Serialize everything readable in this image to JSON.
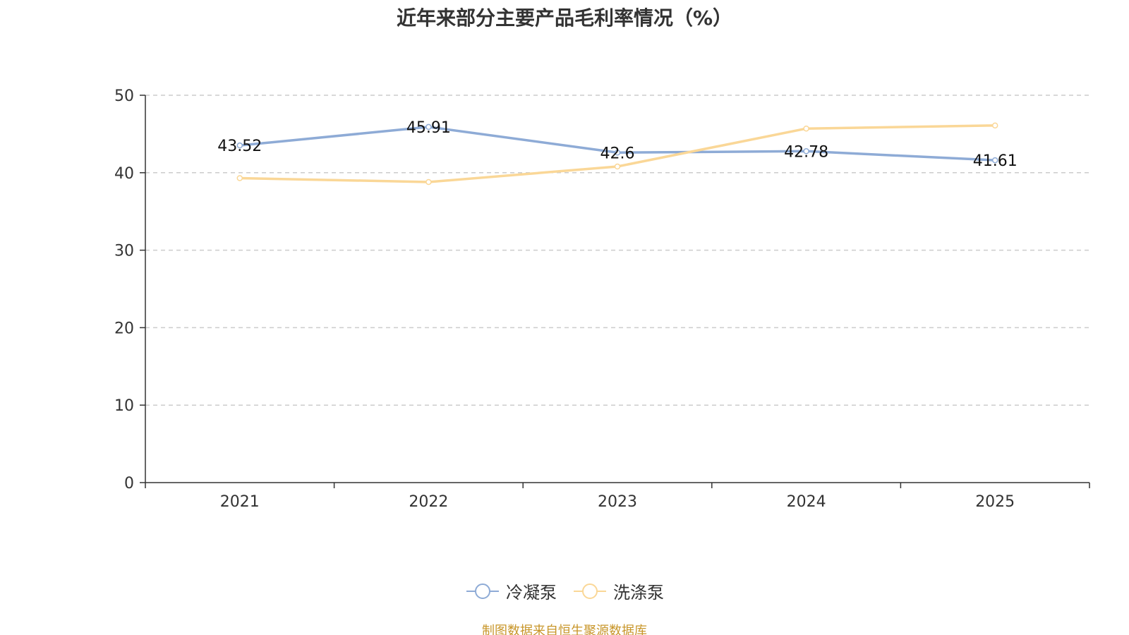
{
  "chart_data": {
    "type": "line",
    "title": "近年来部分主要产品毛利率情况（%）",
    "categories": [
      "2021",
      "2022",
      "2023",
      "2024",
      "2025"
    ],
    "ylim": [
      0,
      50
    ],
    "yticks": [
      0,
      10,
      20,
      30,
      40,
      50
    ],
    "grid": true,
    "legend_position": "bottom",
    "series": [
      {
        "name": "冷凝泵",
        "color": "#8eabd6",
        "values": [
          43.52,
          45.91,
          42.6,
          42.78,
          41.61
        ],
        "labels_shown": true
      },
      {
        "name": "洗涤泵",
        "color": "#fad797",
        "values": [
          39.3,
          38.8,
          40.8,
          45.7,
          46.1
        ],
        "labels_shown": false
      }
    ]
  },
  "source_note": "制图数据来自恒生聚源数据库"
}
